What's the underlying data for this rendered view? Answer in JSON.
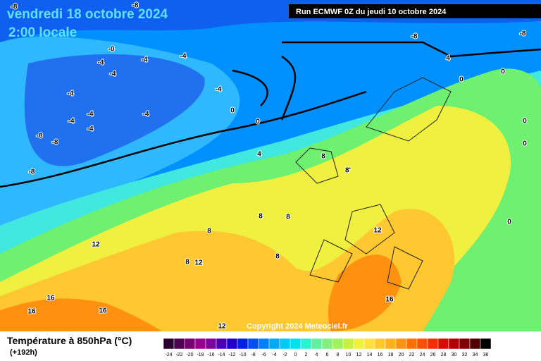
{
  "header": {
    "title": "vendredi 18 octobre 2024",
    "subtitle": "2:00 locale",
    "run": "Run ECMWF 0Z du jeudi 10 octobre 2024"
  },
  "map_labels": [
    "-8",
    "-8",
    "-8",
    "-8",
    "-0",
    "-4",
    "-4",
    "-4",
    "-4",
    "-4",
    "-4",
    "-4",
    "-4",
    "-4",
    "-4",
    "-8",
    "-8",
    "-8",
    "0",
    "0",
    "0",
    "0",
    "0",
    "0",
    "0",
    "4",
    "4",
    "8",
    "8'",
    "8",
    "8",
    "8",
    "8",
    "8",
    "12",
    "12",
    "12",
    "12",
    "16",
    "16",
    "16",
    "16"
  ],
  "copyright": "Copyright 2024 Meteociel.fr",
  "legend": {
    "title": "Température à 850hPa (°C)",
    "subtitle": "(+192h)",
    "labels": [
      -24,
      -22,
      -20,
      -18,
      -16,
      -14,
      -12,
      -10,
      -8,
      -6,
      -4,
      -2,
      0,
      2,
      4,
      6,
      8,
      10,
      12,
      14,
      16,
      18,
      20,
      22,
      24,
      26,
      28,
      30,
      32,
      34,
      36
    ],
    "colors": [
      "#2a0030",
      "#500050",
      "#780070",
      "#960090",
      "#8000a0",
      "#4a00b0",
      "#2000c8",
      "#0020e0",
      "#0050f0",
      "#0080ff",
      "#00a8ff",
      "#00c8ff",
      "#00e0f0",
      "#30f0d0",
      "#60f0a0",
      "#80f080",
      "#a0f060",
      "#c8f040",
      "#f0f040",
      "#ffe040",
      "#ffc830",
      "#ffb020",
      "#ff9010",
      "#ff7000",
      "#ff5000",
      "#f03000",
      "#d01000",
      "#b00000",
      "#800000",
      "#500000",
      "#000000"
    ]
  }
}
